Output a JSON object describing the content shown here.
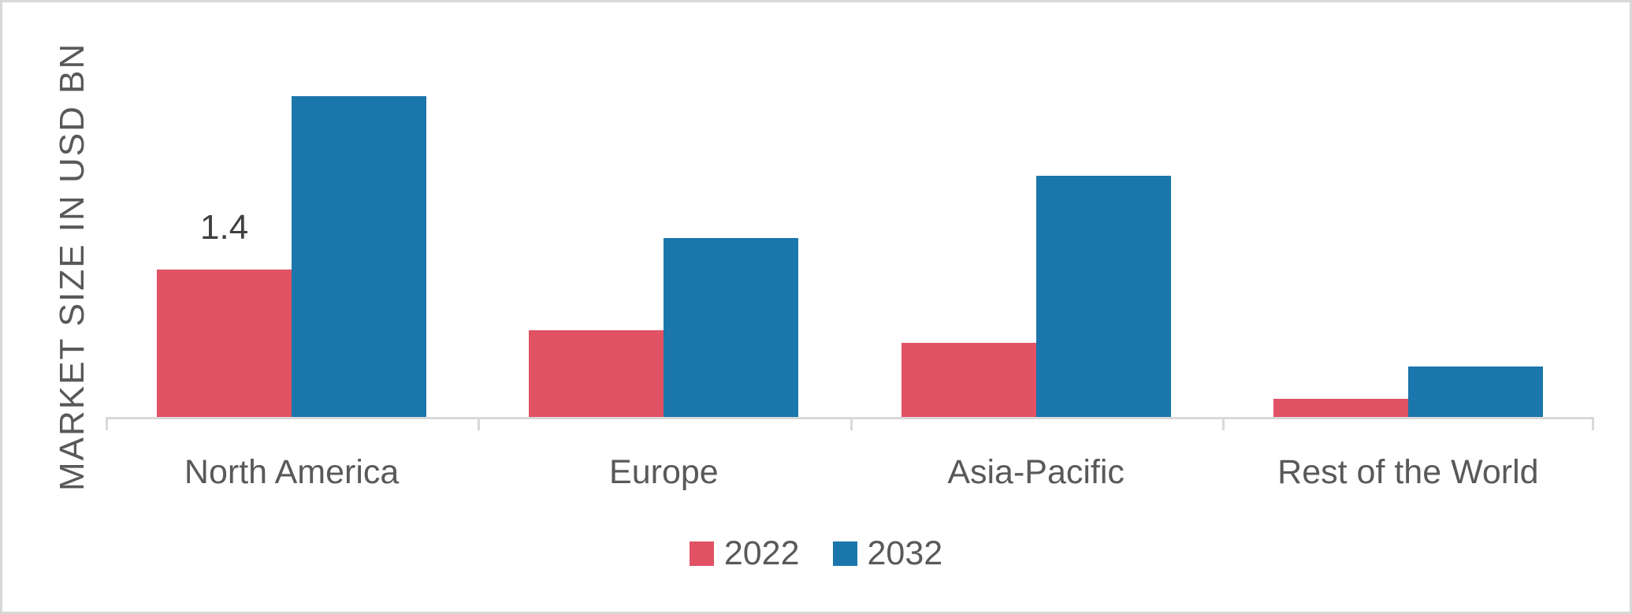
{
  "chart_data": {
    "type": "bar",
    "title": "",
    "categories": [
      "North America",
      "Europe",
      "Asia-Pacific",
      "Rest of the World"
    ],
    "series": [
      {
        "name": "2022",
        "color": "#e05264",
        "values": [
          1.4,
          0.82,
          0.7,
          0.17
        ]
      },
      {
        "name": "2032",
        "color": "#1b76ab",
        "values": [
          3.05,
          1.7,
          2.29,
          0.48
        ]
      }
    ],
    "data_labels": [
      {
        "series": "2022",
        "category": "North America",
        "text": "1.4"
      }
    ],
    "xlabel": "",
    "ylabel": "MARKET SIZE IN USD BN",
    "ylim": [
      0,
      3.4
    ],
    "grid": false,
    "y_axis_ticks_visible": false,
    "legend_position": "bottom",
    "axis_color": "#d9d9d9",
    "text_color": "#595959",
    "label_color": "#3f3f3f"
  }
}
